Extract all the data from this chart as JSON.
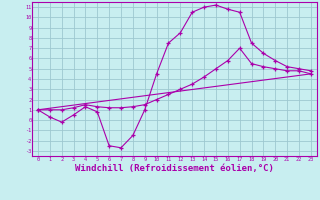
{
  "background_color": "#c8eef0",
  "grid_color": "#9ec8d0",
  "line_color": "#aa00aa",
  "xlabel": "Windchill (Refroidissement éolien,°C)",
  "xlabel_fontsize": 6.5,
  "ylabel_ticks": [
    -3,
    -2,
    -1,
    0,
    1,
    2,
    3,
    4,
    5,
    6,
    7,
    8,
    9,
    10,
    11
  ],
  "xlabel_ticks": [
    0,
    1,
    2,
    3,
    4,
    5,
    6,
    7,
    8,
    9,
    10,
    11,
    12,
    13,
    14,
    15,
    16,
    17,
    18,
    19,
    20,
    21,
    22,
    23
  ],
  "xlim": [
    -0.5,
    23.5
  ],
  "ylim": [
    -3.5,
    11.5
  ],
  "line1_x": [
    0,
    1,
    2,
    3,
    4,
    5,
    6,
    7,
    8,
    9,
    10,
    11,
    12,
    13,
    14,
    15,
    16,
    17,
    18,
    19,
    20,
    21,
    22,
    23
  ],
  "line1_y": [
    1.0,
    0.3,
    -0.2,
    0.5,
    1.3,
    0.8,
    -2.5,
    -2.7,
    -1.5,
    1.0,
    4.5,
    7.5,
    8.5,
    10.5,
    11.0,
    11.2,
    10.8,
    10.5,
    7.5,
    6.5,
    5.8,
    5.2,
    5.0,
    4.8
  ],
  "line2_x": [
    0,
    1,
    2,
    3,
    4,
    5,
    6,
    7,
    8,
    9,
    10,
    11,
    12,
    13,
    14,
    15,
    16,
    17,
    18,
    19,
    20,
    21,
    22,
    23
  ],
  "line2_y": [
    1.0,
    1.0,
    1.0,
    1.2,
    1.5,
    1.3,
    1.2,
    1.2,
    1.3,
    1.5,
    2.0,
    2.5,
    3.0,
    3.5,
    4.2,
    5.0,
    5.8,
    7.0,
    5.5,
    5.2,
    5.0,
    4.8,
    4.8,
    4.5
  ],
  "line3_x": [
    0,
    23
  ],
  "line3_y": [
    1.0,
    4.5
  ]
}
